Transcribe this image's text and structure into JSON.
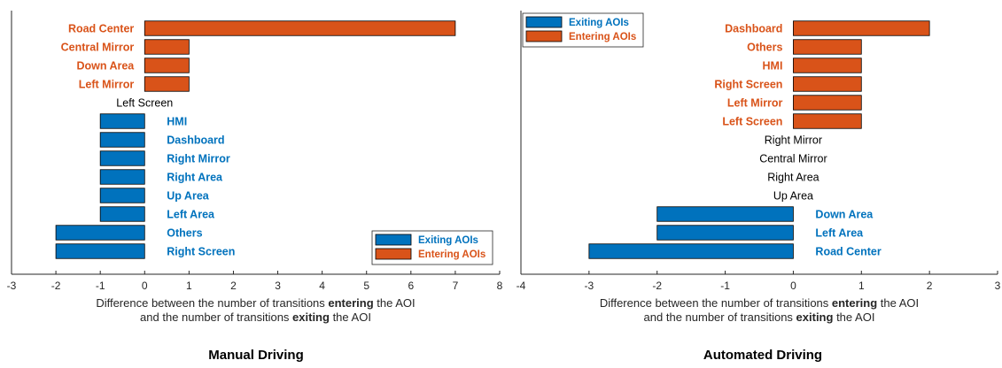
{
  "colors": {
    "exiting": "#0072BD",
    "entering": "#D95319",
    "neutral_label": "#000000",
    "axis": "#262626"
  },
  "xlabel_line1": {
    "pre": "Difference between the number of transitions ",
    "bold": "entering",
    "post": " the AOI"
  },
  "xlabel_line2": {
    "pre": "and the number of transitions ",
    "bold": "exiting",
    "post": " the AOI"
  },
  "chart_data": [
    {
      "type": "bar",
      "orientation": "horizontal",
      "title": "Manual Driving",
      "xlim": [
        -3,
        8
      ],
      "xticks": [
        -3,
        -2,
        -1,
        0,
        1,
        2,
        3,
        4,
        5,
        6,
        7,
        8
      ],
      "categories": [
        "Road Center",
        "Central Mirror",
        "Down Area",
        "Left Mirror",
        "Left Screen",
        "HMI",
        "Dashboard",
        "Right Mirror",
        "Right Area",
        "Up Area",
        "Left Area",
        "Others",
        "Right Screen"
      ],
      "values": [
        7,
        1,
        1,
        1,
        0,
        -1,
        -1,
        -1,
        -1,
        -1,
        -1,
        -2,
        -2
      ],
      "legend": {
        "location": "bottom-right",
        "entries": [
          "Exiting AOIs",
          "Entering AOIs"
        ]
      }
    },
    {
      "type": "bar",
      "orientation": "horizontal",
      "title": "Automated Driving",
      "xlim": [
        -4,
        3
      ],
      "xticks": [
        -4,
        -3,
        -2,
        -1,
        0,
        1,
        2,
        3
      ],
      "categories": [
        "Dashboard",
        "Others",
        "HMI",
        "Right Screen",
        "Left Mirror",
        "Left Screen",
        "Right Mirror",
        "Central Mirror",
        "Right Area",
        "Up Area",
        "Down Area",
        "Left Area",
        "Road Center"
      ],
      "values": [
        2,
        1,
        1,
        1,
        1,
        1,
        0,
        0,
        0,
        0,
        -2,
        -2,
        -3
      ],
      "legend": {
        "location": "top-left",
        "entries": [
          "Exiting AOIs",
          "Entering AOIs"
        ]
      }
    }
  ]
}
